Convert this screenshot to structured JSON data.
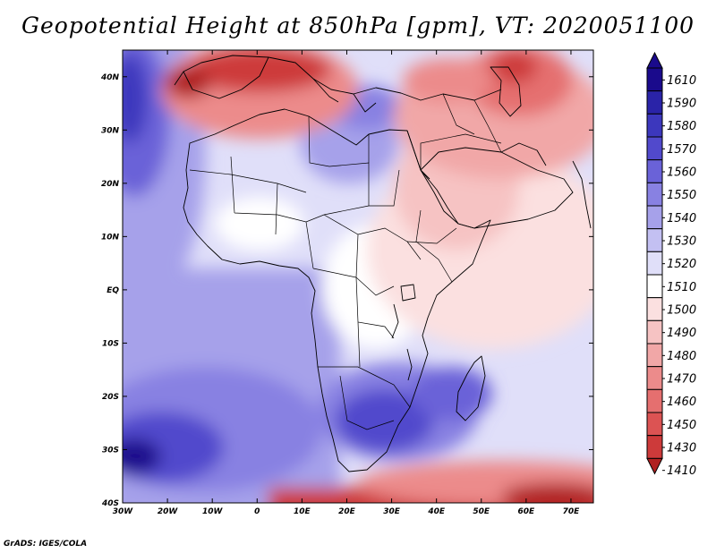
{
  "title": "Geopotential Height at 850hPa [gpm], VT: 2020051100",
  "credit": "GrADS: IGES/COLA",
  "map": {
    "lon_range": [
      -30,
      75
    ],
    "lat_range": [
      -40,
      45
    ],
    "lat_ticks": [
      {
        "value": 40,
        "label": "40N"
      },
      {
        "value": 30,
        "label": "30N"
      },
      {
        "value": 20,
        "label": "20N"
      },
      {
        "value": 10,
        "label": "10N"
      },
      {
        "value": 0,
        "label": "EQ"
      },
      {
        "value": -10,
        "label": "10S"
      },
      {
        "value": -20,
        "label": "20S"
      },
      {
        "value": -30,
        "label": "30S"
      },
      {
        "value": -40,
        "label": "40S"
      }
    ],
    "lon_ticks": [
      {
        "value": -30,
        "label": "30W"
      },
      {
        "value": -20,
        "label": "20W"
      },
      {
        "value": -10,
        "label": "10W"
      },
      {
        "value": 0,
        "label": "0"
      },
      {
        "value": 10,
        "label": "10E"
      },
      {
        "value": 20,
        "label": "20E"
      },
      {
        "value": 30,
        "label": "30E"
      },
      {
        "value": 40,
        "label": "40E"
      },
      {
        "value": 50,
        "label": "50E"
      },
      {
        "value": 60,
        "label": "60E"
      },
      {
        "value": 70,
        "label": "70E"
      }
    ]
  },
  "colorbar": {
    "levels": [
      "1610",
      "1590",
      "1580",
      "1570",
      "1560",
      "1550",
      "1540",
      "1530",
      "1520",
      "1510",
      "1500",
      "1490",
      "1480",
      "1470",
      "1460",
      "1450",
      "1430",
      "1410"
    ],
    "colors": [
      "#1a0a8c",
      "#2a23a8",
      "#3c37bd",
      "#5149cc",
      "#6a62d8",
      "#8881e2",
      "#a6a1ea",
      "#c3c0f2",
      "#e0dff9",
      "#ffffff",
      "#fbe0e0",
      "#f6c3c3",
      "#f1a7a7",
      "#ec8b8b",
      "#e56f6f",
      "#dc5353",
      "#cd3a3a",
      "#b02020"
    ]
  },
  "colors": {
    "frame": "#000000",
    "coast": "#000000"
  }
}
